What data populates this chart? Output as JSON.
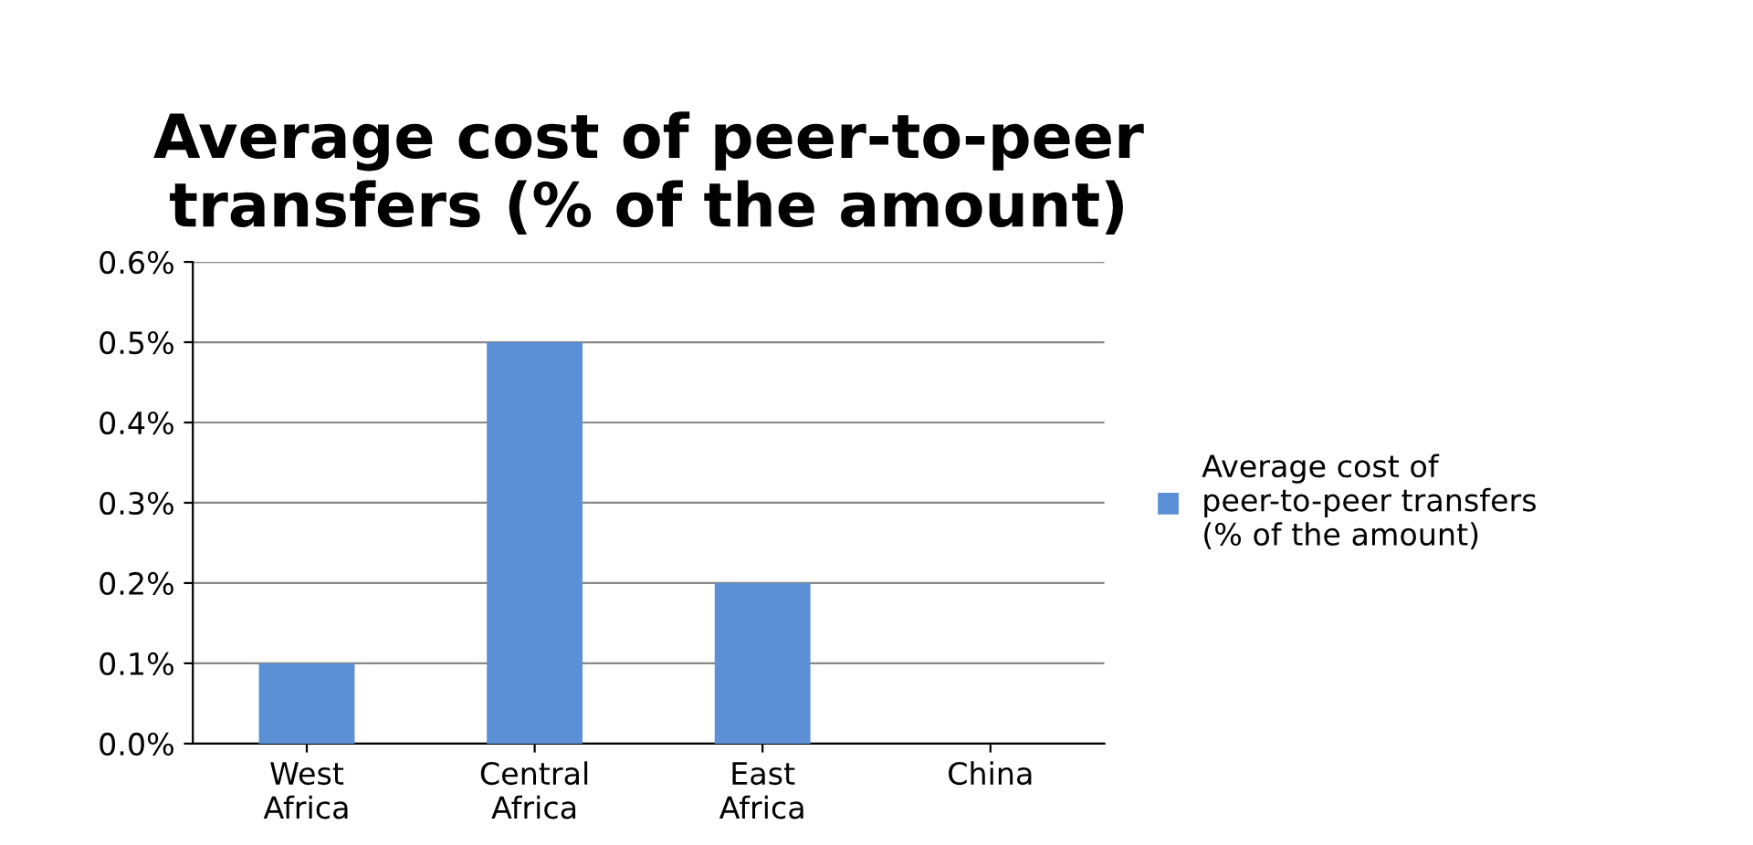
{
  "chart_data": {
    "type": "bar",
    "title": "Average cost of peer-to-peer transfers (% of the amount)",
    "categories": [
      "West Africa",
      "Central Africa",
      "East Africa",
      "China"
    ],
    "series": [
      {
        "name": "Average cost of peer-to-peer transfers (% of the amount)",
        "color": "#5b8fd6",
        "values": [
          0.1,
          0.5,
          0.2,
          0
        ]
      }
    ],
    "ylim": [
      0,
      0.6
    ],
    "yticks": [
      {
        "value": 0,
        "label": "0.0%"
      },
      {
        "value": 0.1,
        "label": "0.1%"
      },
      {
        "value": 0.2,
        "label": "0.2%"
      },
      {
        "value": 0.3,
        "label": "0.3%"
      },
      {
        "value": 0.4,
        "label": "0.4%"
      },
      {
        "value": 0.5,
        "label": "0.5%"
      },
      {
        "value": 0.6,
        "label": "0.6%"
      }
    ],
    "grid": "y",
    "legend": "right"
  }
}
